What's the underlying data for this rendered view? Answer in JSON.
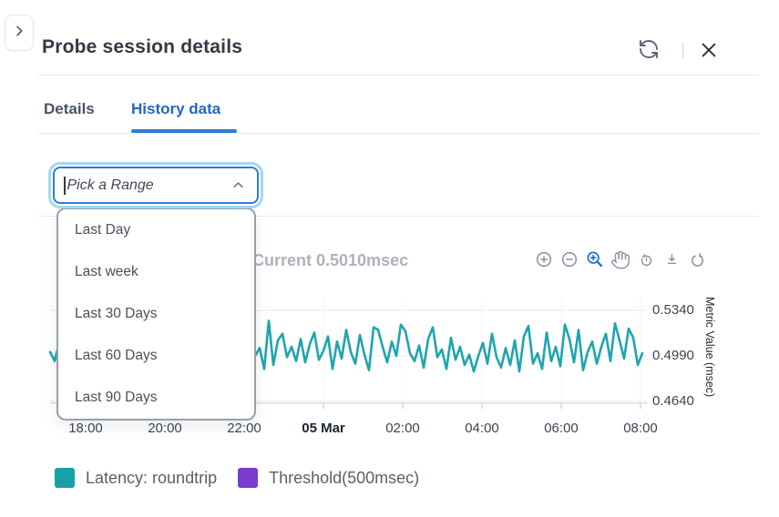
{
  "header": {
    "title": "Probe session details"
  },
  "tabs": {
    "details": "Details",
    "history": "History data",
    "active": "History data"
  },
  "range_select": {
    "placeholder": "Pick a Range",
    "state": "open",
    "options": [
      "Last Day",
      "Last week",
      "Last 30 Days",
      "Last 60 Days",
      "Last 90 Days"
    ]
  },
  "chart": {
    "title": "Current 0.5010msec",
    "toolbar": [
      "zoom-in",
      "zoom-out",
      "selection-zoom",
      "pan",
      "restore",
      "download",
      "reset"
    ],
    "active_tool": "selection-zoom"
  },
  "chart_data": {
    "type": "line",
    "title": "Current 0.5010msec",
    "current_value_msec": 0.501,
    "ylabel": "Metric Value (msec)",
    "ylim": [
      0.464,
      0.534
    ],
    "y_ticks": [
      "0.5340",
      "0.4990",
      "0.4640"
    ],
    "x_ticks": [
      "18:00",
      "20:00",
      "22:00",
      "05 Mar",
      "02:00",
      "04:00",
      "06:00",
      "08:00"
    ],
    "x_bold_tick": "05 Mar",
    "grid": true,
    "legend_position": "bottom",
    "series": [
      {
        "name": "Latency: roundtrip",
        "color": "#1fa5ae",
        "values": [
          0.502,
          0.495,
          0.51,
          0.498,
          0.516,
          0.492,
          0.506,
          0.519,
          0.496,
          0.504,
          0.489,
          0.513,
          0.5,
          0.494,
          0.511,
          0.497,
          0.522,
          0.505,
          0.491,
          0.515,
          0.499,
          0.507,
          0.493,
          0.518,
          0.502,
          0.488,
          0.512,
          0.506,
          0.495,
          0.52,
          0.497,
          0.509,
          0.492,
          0.514,
          0.501,
          0.494,
          0.517,
          0.508,
          0.49,
          0.511,
          0.496,
          0.523,
          0.504,
          0.492,
          0.518,
          0.499,
          0.505,
          0.489,
          0.526,
          0.492,
          0.511,
          0.516,
          0.498,
          0.506,
          0.495,
          0.512,
          0.494,
          0.508,
          0.517,
          0.496,
          0.503,
          0.514,
          0.489,
          0.51,
          0.497,
          0.519,
          0.502,
          0.493,
          0.515,
          0.5,
          0.488,
          0.521,
          0.519,
          0.506,
          0.494,
          0.51,
          0.499,
          0.523,
          0.518,
          0.501,
          0.495,
          0.507,
          0.49,
          0.512,
          0.521,
          0.498,
          0.504,
          0.489,
          0.513,
          0.496,
          0.506,
          0.492,
          0.5,
          0.487,
          0.499,
          0.509,
          0.493,
          0.516,
          0.498,
          0.49,
          0.505,
          0.492,
          0.511,
          0.487,
          0.514,
          0.522,
          0.493,
          0.501,
          0.489,
          0.517,
          0.495,
          0.506,
          0.491,
          0.523,
          0.512,
          0.494,
          0.519,
          0.488,
          0.502,
          0.51,
          0.493,
          0.506,
          0.516,
          0.495,
          0.524,
          0.511,
          0.497,
          0.52,
          0.513,
          0.492,
          0.501
        ]
      },
      {
        "name": "Threshold(500msec)",
        "color": "#7a3bd0",
        "value_msec": 500,
        "visible_in_range": false
      }
    ]
  },
  "legend": {
    "items": [
      {
        "label": "Latency: roundtrip",
        "color": "#18a0a8"
      },
      {
        "label": "Threshold(500msec)",
        "color": "#7a3bd0"
      }
    ]
  }
}
